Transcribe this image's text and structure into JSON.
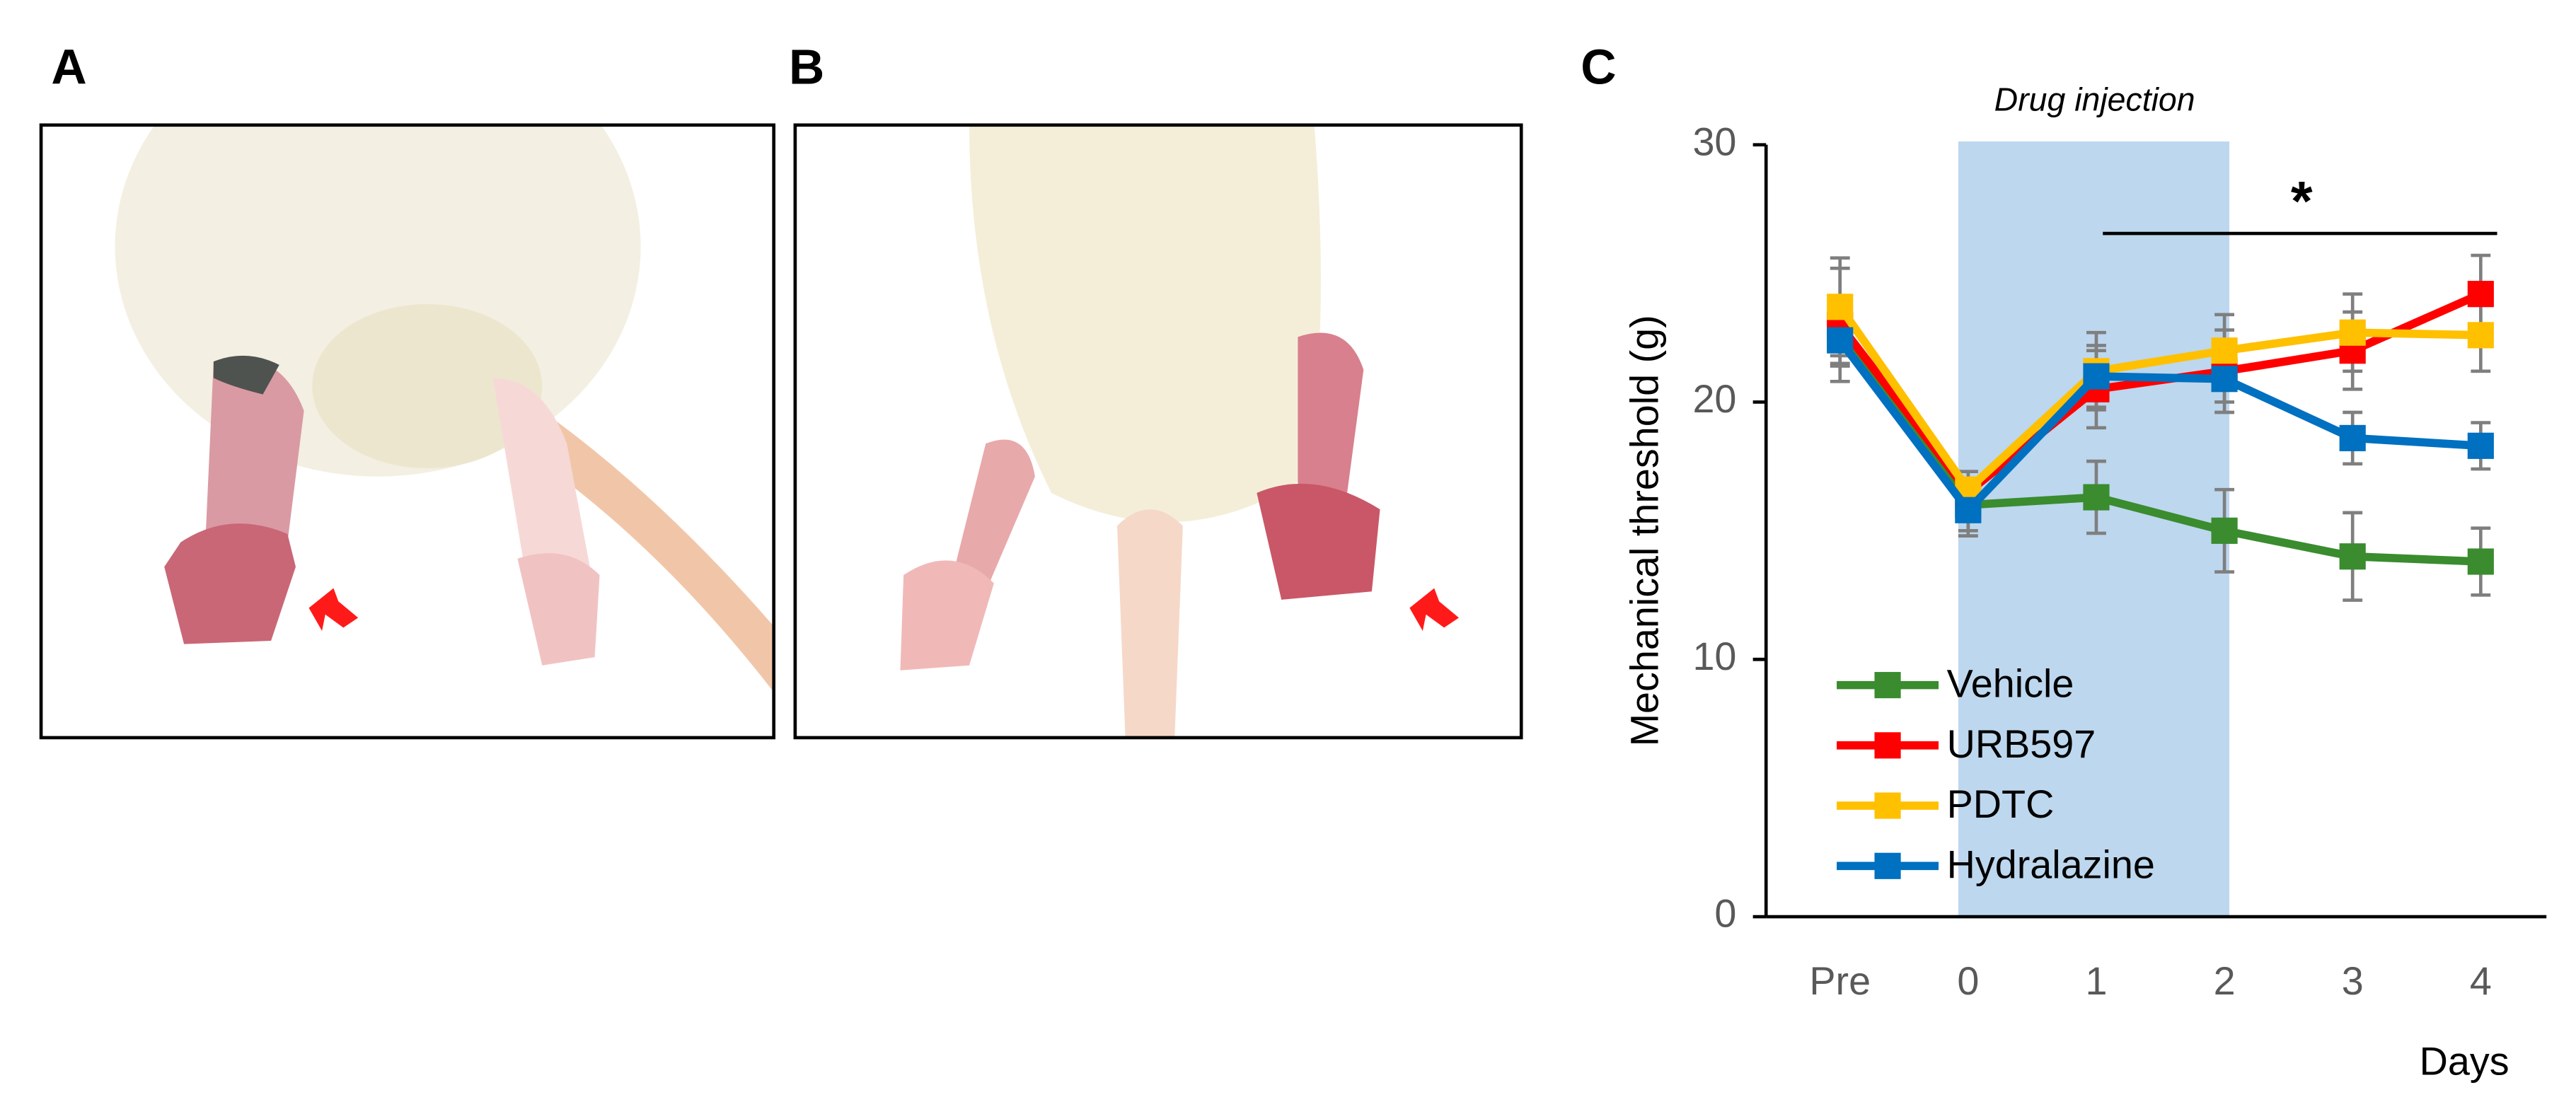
{
  "panels": [
    {
      "label": "A"
    },
    {
      "label": "B"
    },
    {
      "label": "C"
    }
  ],
  "chart_data": {
    "type": "line",
    "annotation": "Drug injection",
    "significance": "*",
    "x_label": "Days",
    "y_label": "Mechanical threshold (g)",
    "categories": [
      "Pre",
      "0",
      "1",
      "2",
      "3",
      "4"
    ],
    "ylim": [
      0,
      30
    ],
    "yticks": [
      0,
      10,
      20,
      30
    ],
    "legend": "lower-left",
    "series": [
      {
        "name": "Vehicle",
        "color": "#3a8c2f",
        "values": [
          22.5,
          16.0,
          16.3,
          15.0,
          14.0,
          13.8
        ],
        "errors": [
          1.0,
          1.0,
          1.4,
          1.6,
          1.7,
          1.3
        ]
      },
      {
        "name": "URB597",
        "color": "#ff0000",
        "values": [
          23.0,
          16.5,
          20.5,
          21.2,
          22.0,
          24.2
        ],
        "errors": [
          2.2,
          0.8,
          1.5,
          1.6,
          1.5,
          1.5
        ]
      },
      {
        "name": "PDTC",
        "color": "#ffc000",
        "values": [
          23.7,
          16.6,
          21.2,
          22.0,
          22.7,
          22.6
        ],
        "errors": [
          1.9,
          0.7,
          1.5,
          1.4,
          1.5,
          1.4
        ]
      },
      {
        "name": "Hydralazine",
        "color": "#0070c0",
        "values": [
          22.4,
          15.8,
          21.0,
          20.9,
          18.6,
          18.3
        ],
        "errors": [
          1.0,
          1.0,
          1.2,
          0.9,
          1.0,
          0.9
        ]
      }
    ]
  }
}
